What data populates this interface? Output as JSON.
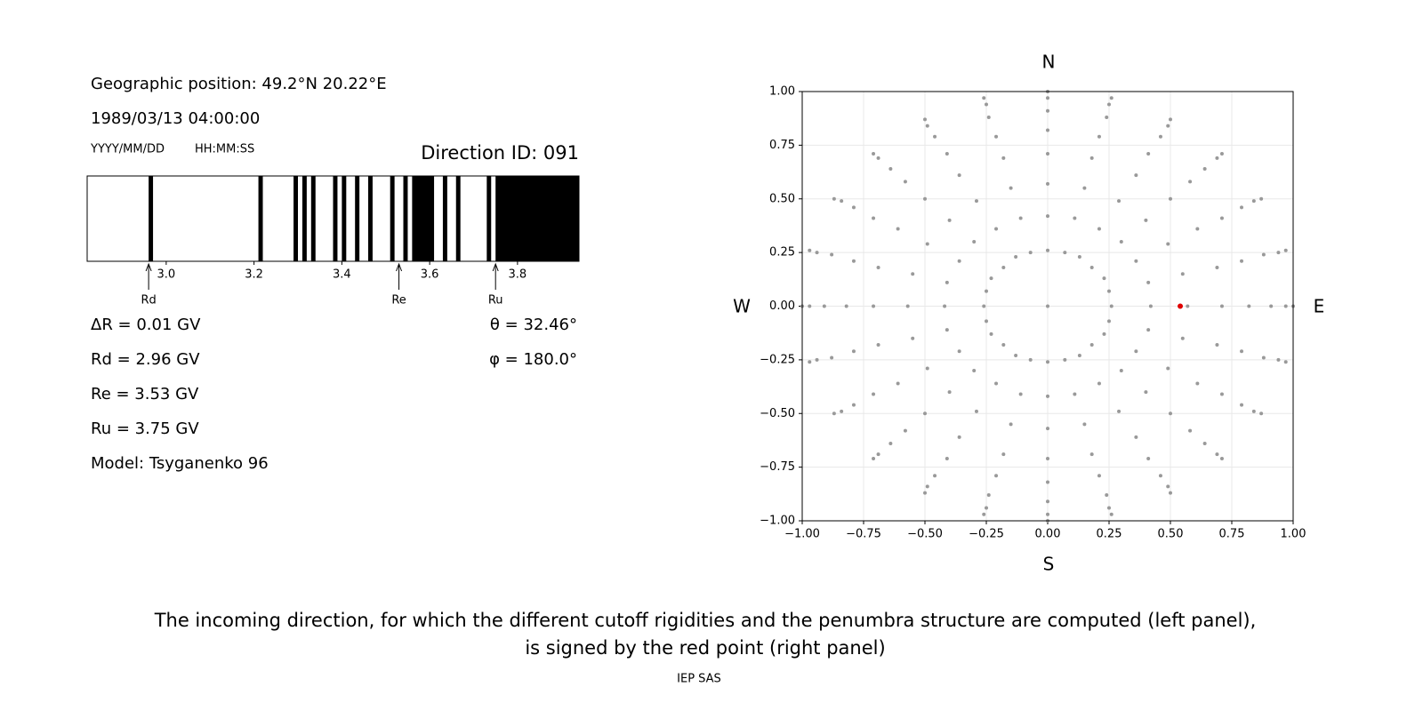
{
  "header": {
    "position": "Geographic position: 49.2°N 20.22°E",
    "datetime": "1989/03/13 04:00:00",
    "date_format": "YYYY/MM/DD",
    "time_format": "HH:MM:SS",
    "direction_id": "Direction ID: 091"
  },
  "results": {
    "delta_r": "ΔR = 0.01 GV",
    "rd": "Rd = 2.96 GV",
    "re": "Re = 3.53 GV",
    "ru": "Ru = 3.75 GV",
    "model": "Model: Tsyganenko 96",
    "theta": "θ = 32.46°",
    "phi": "φ = 180.0°"
  },
  "chart_data": [
    {
      "type": "barcode",
      "color": "#000000",
      "intervals": [
        [
          2.96,
          2.97
        ],
        [
          3.21,
          3.22
        ],
        [
          3.29,
          3.3
        ],
        [
          3.31,
          3.32
        ],
        [
          3.33,
          3.34
        ],
        [
          3.38,
          3.39
        ],
        [
          3.4,
          3.41
        ],
        [
          3.43,
          3.44
        ],
        [
          3.46,
          3.47
        ],
        [
          3.51,
          3.52
        ],
        [
          3.54,
          3.55
        ],
        [
          3.56,
          3.61
        ],
        [
          3.63,
          3.64
        ],
        [
          3.66,
          3.67
        ],
        [
          3.73,
          3.74
        ],
        [
          3.75,
          3.94
        ]
      ],
      "xlim": [
        2.82,
        3.94
      ],
      "xticks": [
        {
          "value": 3,
          "label": "3.0"
        },
        3.2,
        3.4,
        3.6,
        3.8
      ],
      "markers": [
        {
          "label": "Rd",
          "value": 2.96
        },
        {
          "label": "Re",
          "value": 3.53
        },
        {
          "label": "Ru",
          "value": 3.75
        }
      ]
    },
    {
      "type": "scatter",
      "grid": true,
      "compass": {
        "N": "N",
        "S": "S",
        "W": "W",
        "E": "E"
      },
      "xlim": [
        -1,
        1
      ],
      "ylim": [
        -1,
        1
      ],
      "xticks": [
        {
          "value": -1,
          "label": "−1.00"
        },
        {
          "value": -0.75,
          "label": "−0.75"
        },
        {
          "value": -0.5,
          "label": "−0.50"
        },
        {
          "value": -0.25,
          "label": "−0.25"
        },
        {
          "value": 0,
          "label": "0.00"
        },
        {
          "value": 0.25,
          "label": "0.25"
        },
        {
          "value": 0.5,
          "label": "0.50"
        },
        {
          "value": 0.75,
          "label": "0.75"
        },
        {
          "value": 1,
          "label": "1.00"
        }
      ],
      "yticks": [
        {
          "value": -1,
          "label": "−1.00"
        },
        {
          "value": -0.75,
          "label": "−0.75"
        },
        {
          "value": -0.5,
          "label": "−0.50"
        },
        {
          "value": -0.25,
          "label": "−0.25"
        },
        {
          "value": 0,
          "label": "0.00"
        },
        {
          "value": 0.25,
          "label": "0.25"
        },
        {
          "value": 0.5,
          "label": "0.50"
        },
        {
          "value": 0.75,
          "label": "0.75"
        },
        {
          "value": 1,
          "label": "1.00"
        }
      ],
      "series": [
        {
          "color": "#999999",
          "x": [
            0
          ],
          "y": [
            0
          ]
        },
        {
          "color": "#999999",
          "x": [
            0.26,
            0.25,
            0.23,
            0.18,
            0.13,
            0.07,
            0,
            -0.07,
            -0.13,
            -0.18,
            -0.23,
            -0.25,
            -0.26,
            -0.25,
            -0.23,
            -0.18,
            -0.13,
            -0.07,
            0,
            0.07,
            0.13,
            0.18,
            0.23,
            0.25
          ],
          "y": [
            0,
            0.07,
            0.13,
            0.18,
            0.23,
            0.25,
            0.26,
            0.25,
            0.23,
            0.18,
            0.13,
            0.07,
            0,
            -0.07,
            -0.13,
            -0.18,
            -0.23,
            -0.25,
            -0.26,
            -0.25,
            -0.23,
            -0.18,
            -0.13,
            -0.07
          ]
        },
        {
          "color": "#999999",
          "x": [
            0.42,
            0.41,
            0.36,
            0.3,
            0.21,
            0.11,
            0,
            -0.11,
            -0.21,
            -0.3,
            -0.36,
            -0.41,
            -0.42,
            -0.41,
            -0.36,
            -0.3,
            -0.21,
            -0.11,
            0,
            0.11,
            0.21,
            0.3,
            0.36,
            0.41
          ],
          "y": [
            0,
            0.11,
            0.21,
            0.3,
            0.36,
            0.41,
            0.42,
            0.41,
            0.36,
            0.3,
            0.21,
            0.11,
            0,
            -0.11,
            -0.21,
            -0.3,
            -0.36,
            -0.41,
            -0.42,
            -0.41,
            -0.36,
            -0.3,
            -0.21,
            -0.11
          ]
        },
        {
          "color": "#999999",
          "x": [
            0.57,
            0.55,
            0.49,
            0.4,
            0.29,
            0.15,
            0,
            -0.15,
            -0.29,
            -0.4,
            -0.49,
            -0.55,
            -0.57,
            -0.55,
            -0.49,
            -0.4,
            -0.29,
            -0.15,
            0,
            0.15,
            0.29,
            0.4,
            0.49,
            0.55
          ],
          "y": [
            0,
            0.15,
            0.29,
            0.4,
            0.49,
            0.55,
            0.57,
            0.55,
            0.49,
            0.4,
            0.29,
            0.15,
            0,
            -0.15,
            -0.29,
            -0.4,
            -0.49,
            -0.55,
            -0.57,
            -0.55,
            -0.49,
            -0.4,
            -0.29,
            -0.15
          ]
        },
        {
          "color": "#999999",
          "x": [
            0.71,
            0.69,
            0.61,
            0.5,
            0.36,
            0.18,
            0,
            -0.18,
            -0.36,
            -0.5,
            -0.61,
            -0.69,
            -0.71,
            -0.69,
            -0.61,
            -0.5,
            -0.36,
            -0.18,
            0,
            0.18,
            0.36,
            0.5,
            0.61,
            0.69
          ],
          "y": [
            0,
            0.18,
            0.36,
            0.5,
            0.61,
            0.69,
            0.71,
            0.69,
            0.61,
            0.5,
            0.36,
            0.18,
            0,
            -0.18,
            -0.36,
            -0.5,
            -0.61,
            -0.69,
            -0.71,
            -0.69,
            -0.61,
            -0.5,
            -0.36,
            -0.18
          ]
        },
        {
          "color": "#999999",
          "x": [
            0.82,
            0.79,
            0.71,
            0.58,
            0.41,
            0.21,
            0,
            -0.21,
            -0.41,
            -0.58,
            -0.71,
            -0.79,
            -0.82,
            -0.79,
            -0.71,
            -0.58,
            -0.41,
            -0.21,
            0,
            0.21,
            0.41,
            0.58,
            0.71,
            0.79
          ],
          "y": [
            0,
            0.21,
            0.41,
            0.58,
            0.71,
            0.79,
            0.82,
            0.79,
            0.71,
            0.58,
            0.41,
            0.21,
            0,
            -0.21,
            -0.41,
            -0.58,
            -0.71,
            -0.79,
            -0.82,
            -0.79,
            -0.71,
            -0.58,
            -0.41,
            -0.21
          ]
        },
        {
          "color": "#999999",
          "x": [
            0.91,
            0.88,
            0.79,
            0.64,
            0.46,
            0.24,
            0,
            -0.24,
            -0.46,
            -0.64,
            -0.79,
            -0.88,
            -0.91,
            -0.88,
            -0.79,
            -0.64,
            -0.46,
            -0.24,
            0,
            0.24,
            0.46,
            0.64,
            0.79,
            0.88
          ],
          "y": [
            0,
            0.24,
            0.46,
            0.64,
            0.79,
            0.88,
            0.91,
            0.88,
            0.79,
            0.64,
            0.46,
            0.24,
            0,
            -0.24,
            -0.46,
            -0.64,
            -0.79,
            -0.88,
            -0.91,
            -0.88,
            -0.79,
            -0.64,
            -0.46,
            -0.24
          ]
        },
        {
          "color": "#999999",
          "x": [
            0.97,
            0.94,
            0.84,
            0.69,
            0.49,
            0.25,
            0,
            -0.25,
            -0.49,
            -0.69,
            -0.84,
            -0.94,
            -0.97,
            -0.94,
            -0.84,
            -0.69,
            -0.49,
            -0.25,
            0,
            0.25,
            0.49,
            0.69,
            0.84,
            0.94
          ],
          "y": [
            0,
            0.25,
            0.49,
            0.69,
            0.84,
            0.94,
            0.97,
            0.94,
            0.84,
            0.69,
            0.49,
            0.25,
            0,
            -0.25,
            -0.49,
            -0.69,
            -0.84,
            -0.94,
            -0.97,
            -0.94,
            -0.84,
            -0.69,
            -0.49,
            -0.25
          ]
        },
        {
          "color": "#999999",
          "x": [
            1,
            0.97,
            0.87,
            0.71,
            0.5,
            0.26,
            0,
            -0.26,
            -0.5,
            -0.71,
            -0.87,
            -0.97,
            -1,
            -0.97,
            -0.87,
            -0.71,
            -0.5,
            -0.26,
            0,
            0.26,
            0.5,
            0.71,
            0.87,
            0.97
          ],
          "y": [
            0,
            0.26,
            0.5,
            0.71,
            0.87,
            0.97,
            1,
            0.97,
            0.87,
            0.71,
            0.5,
            0.26,
            0,
            -0.26,
            -0.5,
            -0.71,
            -0.87,
            -0.97,
            -1,
            -0.97,
            -0.87,
            -0.71,
            -0.5,
            -0.26
          ]
        },
        {
          "color": "#e00000",
          "x": [
            0.54
          ],
          "y": [
            0
          ]
        }
      ]
    }
  ],
  "caption": [
    "The incoming direction, for which the different cutoff rigidities and the penumbra structure are computed (left panel),",
    "is signed by the red point (right panel)"
  ],
  "footer": "IEP SAS"
}
